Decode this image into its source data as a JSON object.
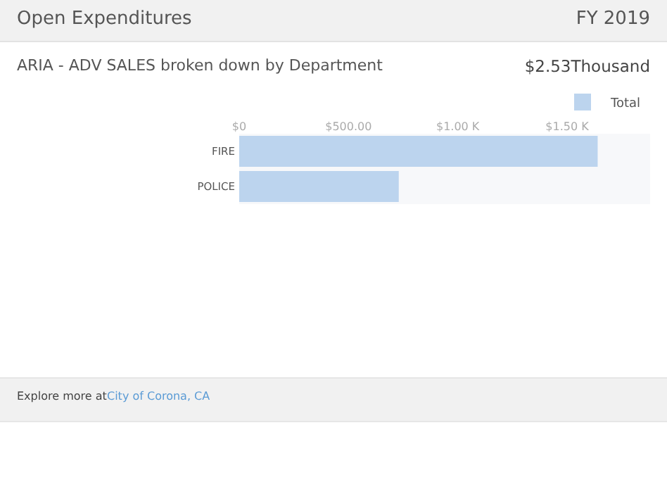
{
  "chart_data": {
    "type": "bar",
    "orientation": "horizontal",
    "title": "Open Expenditures",
    "subtitle": "ARIA - ADV SALES broken down by Department",
    "annotations": [
      "FY 2019",
      "$2.53Thousand",
      "Explore more at",
      "City of Corona, CA"
    ],
    "categories": [
      "FIRE",
      "POLICE"
    ],
    "series": [
      {
        "name": "Total",
        "color": "#bcd4ee",
        "values": [
          1640,
          730
        ]
      }
    ],
    "xlim": [
      0,
      1880
    ],
    "xticks": [
      {
        "value": 0,
        "label": "$0"
      },
      {
        "value": 500,
        "label": "$500.00"
      },
      {
        "value": 1000,
        "label": "$1.00 K"
      },
      {
        "value": 1500,
        "label": "$1.50 K"
      }
    ],
    "grid": false,
    "legend": "top right"
  }
}
